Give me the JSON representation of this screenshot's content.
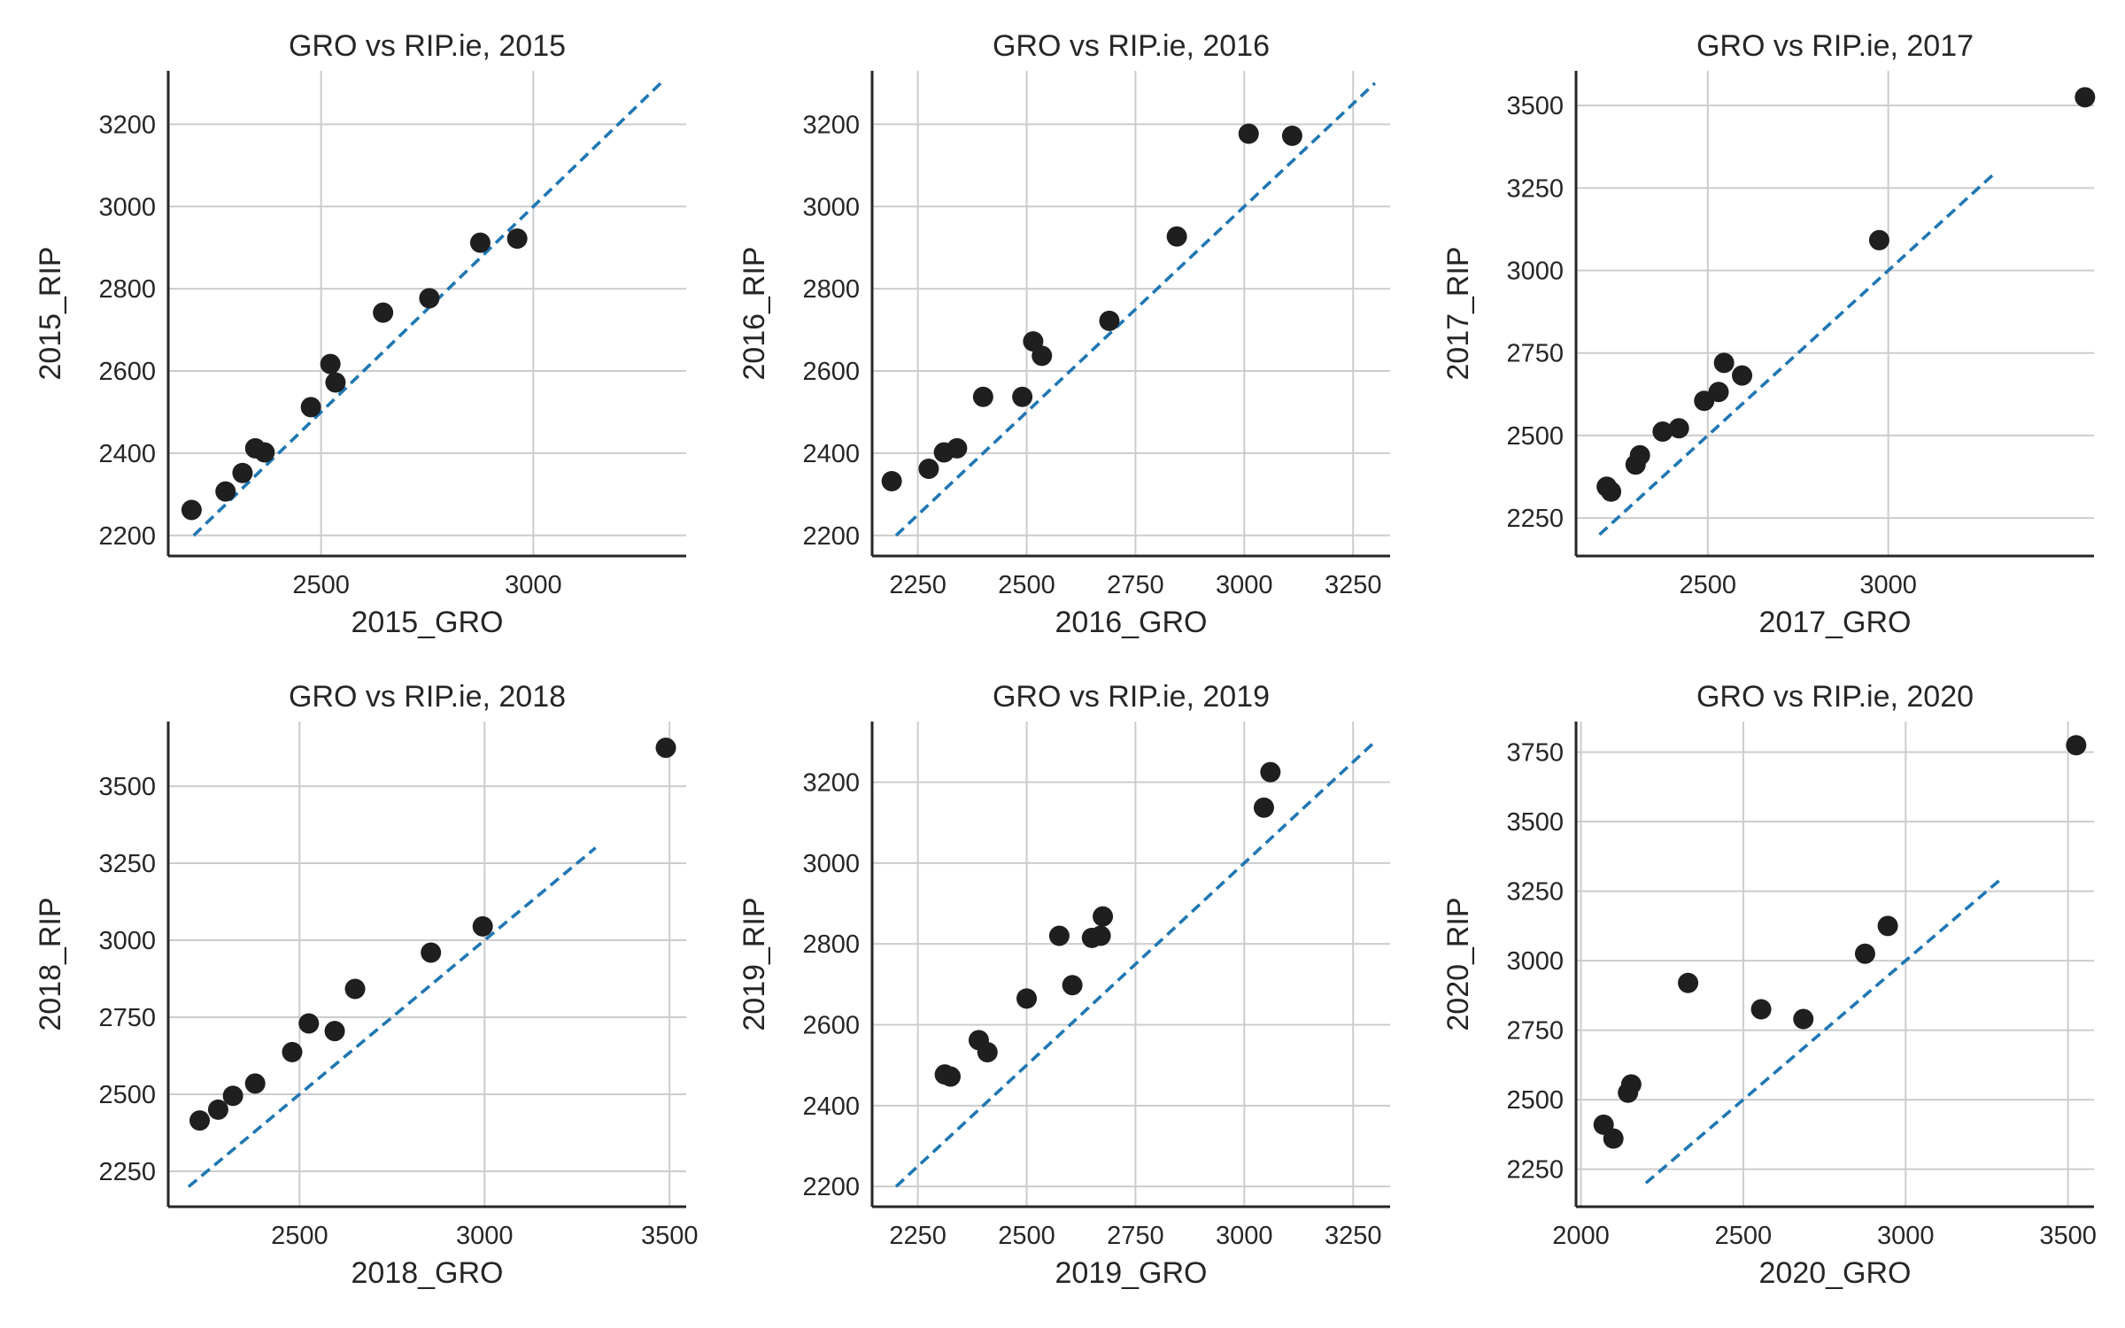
{
  "colors": {
    "point": "#1f1f1f",
    "reference_line": "#1f77b4",
    "grid": "#cccccc",
    "axis": "#262626"
  },
  "chart_data": [
    {
      "type": "scatter",
      "title": "GRO vs RIP.ie, 2015",
      "xlabel": "2015_GRO",
      "ylabel": "2015_RIP",
      "xlim": [
        2140,
        3360
      ],
      "ylim": [
        2150,
        3330
      ],
      "xticks": [
        2500,
        3000
      ],
      "yticks": [
        2200,
        2400,
        2600,
        2800,
        3000,
        3200
      ],
      "grid": true,
      "legend": "none",
      "reference_line": {
        "x": [
          2200,
          3300
        ],
        "y": [
          2200,
          3300
        ]
      },
      "points": [
        {
          "x": 2195,
          "y": 2262
        },
        {
          "x": 2275,
          "y": 2307
        },
        {
          "x": 2315,
          "y": 2352
        },
        {
          "x": 2345,
          "y": 2412
        },
        {
          "x": 2367,
          "y": 2402
        },
        {
          "x": 2476,
          "y": 2512
        },
        {
          "x": 2522,
          "y": 2617
        },
        {
          "x": 2534,
          "y": 2572
        },
        {
          "x": 2646,
          "y": 2742
        },
        {
          "x": 2755,
          "y": 2777
        },
        {
          "x": 2875,
          "y": 2912
        },
        {
          "x": 2962,
          "y": 2922
        }
      ]
    },
    {
      "type": "scatter",
      "title": "GRO vs RIP.ie, 2016",
      "xlabel": "2016_GRO",
      "ylabel": "2016_RIP",
      "xlim": [
        2145,
        3335
      ],
      "ylim": [
        2150,
        3330
      ],
      "xticks": [
        2250,
        2500,
        2750,
        3000,
        3250
      ],
      "yticks": [
        2200,
        2400,
        2600,
        2800,
        3000,
        3200
      ],
      "grid": true,
      "legend": "none",
      "reference_line": {
        "x": [
          2200,
          3300
        ],
        "y": [
          2200,
          3300
        ]
      },
      "points": [
        {
          "x": 2190,
          "y": 2332
        },
        {
          "x": 2275,
          "y": 2362
        },
        {
          "x": 2310,
          "y": 2402
        },
        {
          "x": 2340,
          "y": 2412
        },
        {
          "x": 2400,
          "y": 2537
        },
        {
          "x": 2490,
          "y": 2537
        },
        {
          "x": 2515,
          "y": 2672
        },
        {
          "x": 2535,
          "y": 2637
        },
        {
          "x": 2690,
          "y": 2722
        },
        {
          "x": 2845,
          "y": 2927
        },
        {
          "x": 3010,
          "y": 3177
        },
        {
          "x": 3110,
          "y": 3172
        }
      ]
    },
    {
      "type": "scatter",
      "title": "GRO vs RIP.ie, 2017",
      "xlabel": "2017_GRO",
      "ylabel": "2017_RIP",
      "xlim": [
        2135,
        3570
      ],
      "ylim": [
        2135,
        3605
      ],
      "xticks": [
        2500,
        3000
      ],
      "yticks": [
        2250,
        2500,
        2750,
        3000,
        3250,
        3500
      ],
      "grid": true,
      "legend": "none",
      "reference_line": {
        "x": [
          2200,
          3300
        ],
        "y": [
          2200,
          3300
        ]
      },
      "points": [
        {
          "x": 2220,
          "y": 2345
        },
        {
          "x": 2232,
          "y": 2330
        },
        {
          "x": 2300,
          "y": 2412
        },
        {
          "x": 2312,
          "y": 2440
        },
        {
          "x": 2375,
          "y": 2512
        },
        {
          "x": 2420,
          "y": 2522
        },
        {
          "x": 2490,
          "y": 2605
        },
        {
          "x": 2530,
          "y": 2632
        },
        {
          "x": 2545,
          "y": 2720
        },
        {
          "x": 2595,
          "y": 2682
        },
        {
          "x": 2975,
          "y": 3092
        },
        {
          "x": 3545,
          "y": 3525
        }
      ]
    },
    {
      "type": "scatter",
      "title": "GRO vs RIP.ie, 2018",
      "xlabel": "2018_GRO",
      "ylabel": "2018_RIP",
      "xlim": [
        2145,
        3545
      ],
      "ylim": [
        2135,
        3710
      ],
      "xticks": [
        2500,
        3000,
        3500
      ],
      "yticks": [
        2250,
        2500,
        2750,
        3000,
        3250,
        3500
      ],
      "grid": true,
      "legend": "none",
      "reference_line": {
        "x": [
          2200,
          3300
        ],
        "y": [
          2200,
          3300
        ]
      },
      "points": [
        {
          "x": 2230,
          "y": 2415
        },
        {
          "x": 2280,
          "y": 2450
        },
        {
          "x": 2320,
          "y": 2495
        },
        {
          "x": 2380,
          "y": 2535
        },
        {
          "x": 2480,
          "y": 2637
        },
        {
          "x": 2525,
          "y": 2730
        },
        {
          "x": 2595,
          "y": 2705
        },
        {
          "x": 2650,
          "y": 2842
        },
        {
          "x": 2855,
          "y": 2960
        },
        {
          "x": 2995,
          "y": 3045
        },
        {
          "x": 3490,
          "y": 3625
        }
      ]
    },
    {
      "type": "scatter",
      "title": "GRO vs RIP.ie, 2019",
      "xlabel": "2019_GRO",
      "ylabel": "2019_RIP",
      "xlim": [
        2145,
        3335
      ],
      "ylim": [
        2150,
        3350
      ],
      "xticks": [
        2250,
        2500,
        2750,
        3000,
        3250
      ],
      "yticks": [
        2200,
        2400,
        2600,
        2800,
        3000,
        3200
      ],
      "grid": true,
      "legend": "none",
      "reference_line": {
        "x": [
          2200,
          3300
        ],
        "y": [
          2200,
          3300
        ]
      },
      "points": [
        {
          "x": 2312,
          "y": 2477
        },
        {
          "x": 2325,
          "y": 2472
        },
        {
          "x": 2390,
          "y": 2562
        },
        {
          "x": 2410,
          "y": 2532
        },
        {
          "x": 2500,
          "y": 2665
        },
        {
          "x": 2575,
          "y": 2820
        },
        {
          "x": 2605,
          "y": 2698
        },
        {
          "x": 2650,
          "y": 2815
        },
        {
          "x": 2670,
          "y": 2820
        },
        {
          "x": 2675,
          "y": 2868
        },
        {
          "x": 3045,
          "y": 3137
        },
        {
          "x": 3060,
          "y": 3225
        }
      ]
    },
    {
      "type": "scatter",
      "title": "GRO vs RIP.ie, 2020",
      "xlabel": "2020_GRO",
      "ylabel": "2020_RIP",
      "xlim": [
        1985,
        3580
      ],
      "ylim": [
        2115,
        3860
      ],
      "xticks": [
        2000,
        2500,
        3000,
        3500
      ],
      "yticks": [
        2250,
        2500,
        2750,
        3000,
        3250,
        3500,
        3750
      ],
      "grid": true,
      "legend": "none",
      "reference_line": {
        "x": [
          2200,
          3300
        ],
        "y": [
          2200,
          3300
        ]
      },
      "points": [
        {
          "x": 2070,
          "y": 2410
        },
        {
          "x": 2100,
          "y": 2360
        },
        {
          "x": 2145,
          "y": 2525
        },
        {
          "x": 2155,
          "y": 2555
        },
        {
          "x": 2330,
          "y": 2920
        },
        {
          "x": 2555,
          "y": 2825
        },
        {
          "x": 2685,
          "y": 2790
        },
        {
          "x": 2875,
          "y": 3025
        },
        {
          "x": 2945,
          "y": 3125
        },
        {
          "x": 3525,
          "y": 3775
        }
      ]
    }
  ]
}
